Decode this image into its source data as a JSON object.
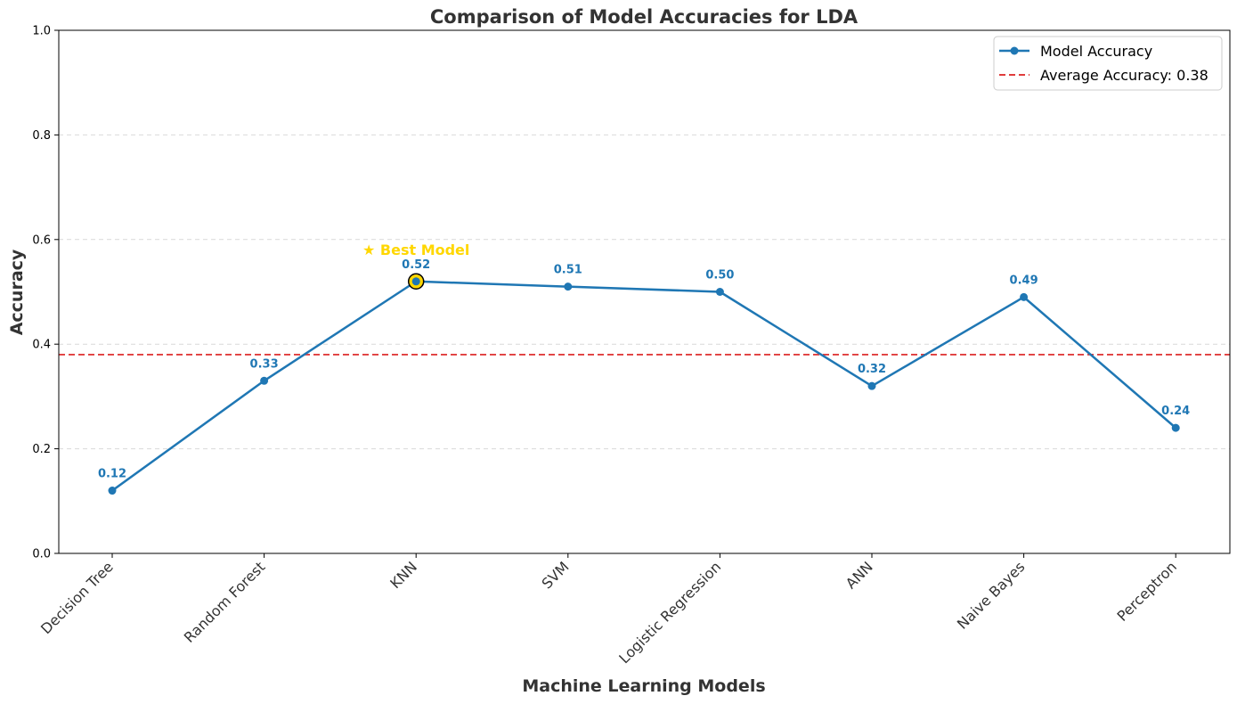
{
  "chart_data": {
    "type": "line",
    "title": "Comparison of Model Accuracies for LDA",
    "xlabel": "Machine Learning Models",
    "ylabel": "Accuracy",
    "ylim": [
      0,
      1.0
    ],
    "yticks": [
      "0.0",
      "0.2",
      "0.4",
      "0.6",
      "0.8",
      "1.0"
    ],
    "grid": "horizontal dashed",
    "categories": [
      "Decision Tree",
      "Random Forest",
      "KNN",
      "SVM",
      "Logistic Regression",
      "ANN",
      "Naive Bayes",
      "Perceptron"
    ],
    "series": [
      {
        "name": "Model Accuracy",
        "values": [
          0.12,
          0.33,
          0.52,
          0.51,
          0.5,
          0.32,
          0.49,
          0.24
        ],
        "labels": [
          "0.12",
          "0.33",
          "0.52",
          "0.51",
          "0.50",
          "0.32",
          "0.49",
          "0.24"
        ],
        "color": "#1f77b4"
      }
    ],
    "reference_line": {
      "name": "Average Accuracy: 0.38",
      "value": 0.38,
      "color": "#e03c3c",
      "style": "dashed"
    },
    "annotation": {
      "text": "★ Best Model",
      "category": "KNN",
      "color": "#FFD700"
    },
    "legend": {
      "position": "top-right",
      "entries": [
        "Model Accuracy",
        "Average Accuracy: 0.38"
      ]
    }
  }
}
